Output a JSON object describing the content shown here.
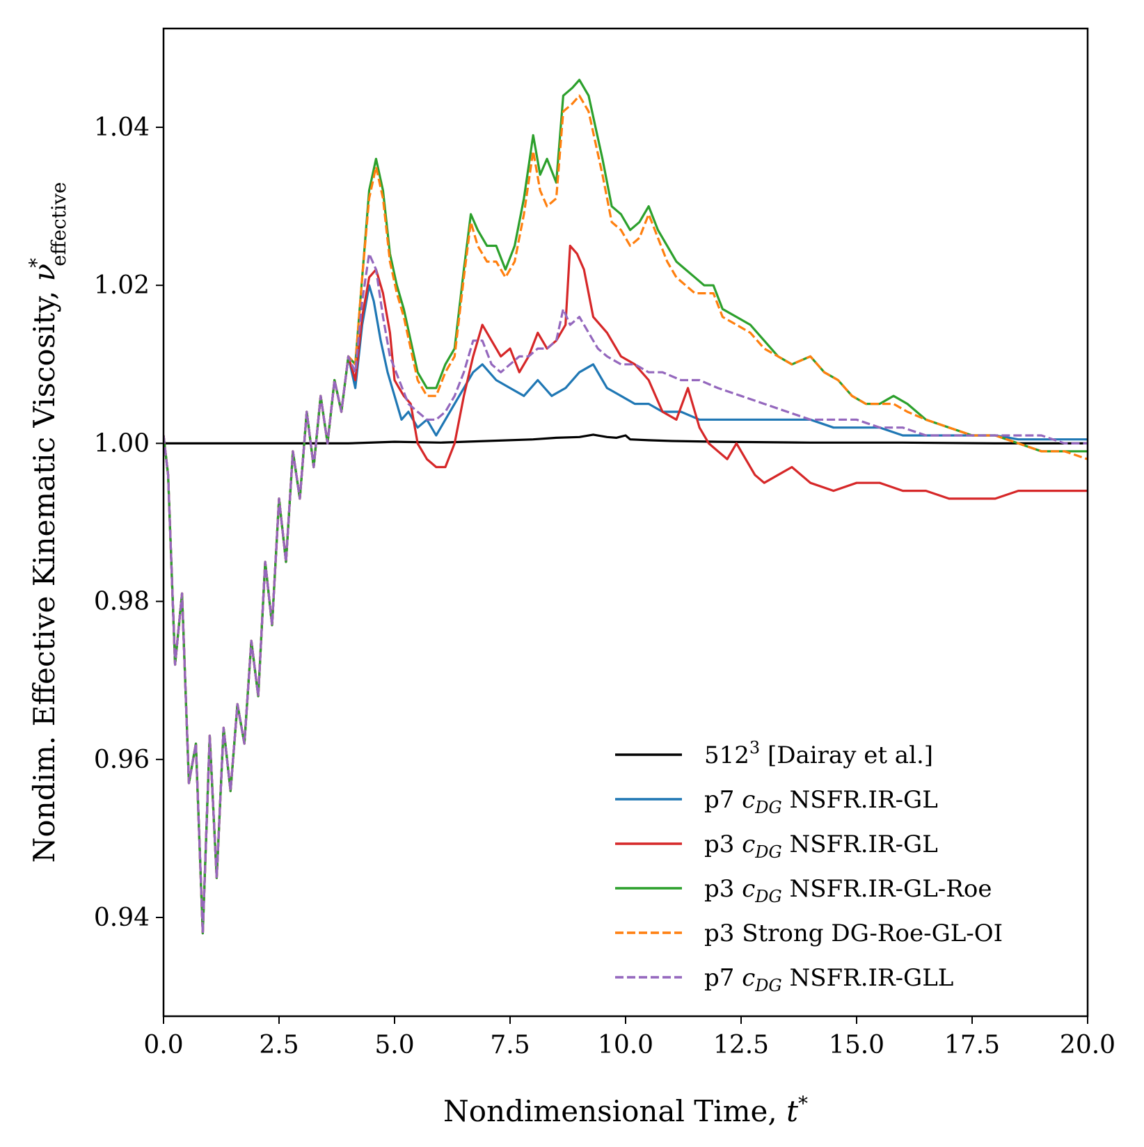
{
  "chart_data": {
    "type": "line",
    "title": "",
    "xlabel": "Nondimensional Time, ",
    "xlabel_symbol": "t",
    "xlabel_sup": "*",
    "ylabel": "Nondim. Effective Kinematic Viscosity, ",
    "ylabel_symbol": "ν",
    "ylabel_sup": "*",
    "ylabel_sub": "effective",
    "xlim": [
      0,
      20
    ],
    "ylim": [
      0.9275,
      1.0525
    ],
    "xticks": [
      0,
      2.5,
      5,
      7.5,
      10,
      12.5,
      15,
      17.5,
      20
    ],
    "xtick_labels": [
      "0.0",
      "2.5",
      "5.0",
      "7.5",
      "10.0",
      "12.5",
      "15.0",
      "17.5",
      "20.0"
    ],
    "yticks": [
      0.94,
      0.96,
      0.98,
      1.0,
      1.02,
      1.04
    ],
    "ytick_labels": [
      "0.94",
      "0.96",
      "0.98",
      "1.00",
      "1.02",
      "1.04"
    ],
    "grid": false,
    "legend_position": "lower-right",
    "series": [
      {
        "name": "512³ [Dairay et al.]",
        "label_main": "512",
        "label_sup": "3",
        "label_rest": " [Dairay et al.]",
        "color": "#000000",
        "dashed": false,
        "x": [
          0,
          1,
          2,
          3,
          4,
          5,
          6,
          7,
          8,
          8.5,
          9,
          9.3,
          9.6,
          9.8,
          10,
          10.1,
          10.5,
          11,
          12,
          14,
          16,
          18,
          20
        ],
        "y": [
          1.0,
          1.0,
          1.0,
          1.0,
          1.0,
          1.0002,
          1.0001,
          1.0003,
          1.0005,
          1.0007,
          1.0008,
          1.0011,
          1.0008,
          1.0007,
          1.001,
          1.0005,
          1.0004,
          1.0003,
          1.0002,
          1.0001,
          1.0001,
          1.0,
          1.0
        ]
      },
      {
        "name": "p7 cDG NSFR.IR-GL",
        "label_pre": "p7 ",
        "label_sym": "c",
        "label_sub": "DG",
        "label_post": " NSFR.IR-GL",
        "color": "#1f77b4",
        "dashed": false,
        "x": [
          0,
          0.1,
          0.25,
          0.4,
          0.55,
          0.7,
          0.85,
          1.0,
          1.15,
          1.3,
          1.45,
          1.6,
          1.75,
          1.9,
          2.05,
          2.2,
          2.35,
          2.5,
          2.65,
          2.8,
          2.95,
          3.1,
          3.25,
          3.4,
          3.55,
          3.7,
          3.85,
          4.0,
          4.15,
          4.3,
          4.45,
          4.55,
          4.7,
          4.85,
          5.0,
          5.15,
          5.3,
          5.5,
          5.7,
          5.9,
          6.1,
          6.3,
          6.5,
          6.7,
          6.9,
          7.2,
          7.5,
          7.8,
          8.1,
          8.4,
          8.7,
          9.0,
          9.3,
          9.6,
          9.9,
          10.2,
          10.5,
          10.8,
          11.2,
          11.6,
          12.0,
          12.5,
          13.0,
          13.5,
          14.0,
          14.5,
          15.0,
          15.5,
          16.0,
          16.5,
          17.0,
          17.5,
          18.0,
          18.5,
          19.0,
          19.5,
          20.0
        ],
        "y": [
          1.001,
          0.996,
          0.972,
          0.981,
          0.957,
          0.962,
          0.938,
          0.963,
          0.945,
          0.964,
          0.956,
          0.967,
          0.962,
          0.975,
          0.968,
          0.985,
          0.977,
          0.993,
          0.985,
          0.999,
          0.993,
          1.004,
          0.997,
          1.006,
          1.0,
          1.008,
          1.004,
          1.011,
          1.007,
          1.015,
          1.02,
          1.018,
          1.013,
          1.009,
          1.006,
          1.003,
          1.004,
          1.002,
          1.003,
          1.001,
          1.003,
          1.005,
          1.007,
          1.009,
          1.01,
          1.008,
          1.007,
          1.006,
          1.008,
          1.006,
          1.007,
          1.009,
          1.01,
          1.007,
          1.006,
          1.005,
          1.005,
          1.004,
          1.004,
          1.003,
          1.003,
          1.003,
          1.003,
          1.003,
          1.003,
          1.002,
          1.002,
          1.002,
          1.001,
          1.001,
          1.001,
          1.001,
          1.001,
          1.0005,
          1.0005,
          1.0005,
          1.0005
        ]
      },
      {
        "name": "p3 cDG NSFR.IR-GL",
        "label_pre": "p3 ",
        "label_sym": "c",
        "label_sub": "DG",
        "label_post": " NSFR.IR-GL",
        "color": "#d62728",
        "dashed": false,
        "x": [
          0,
          0.1,
          0.25,
          0.4,
          0.55,
          0.7,
          0.85,
          1.0,
          1.15,
          1.3,
          1.45,
          1.6,
          1.75,
          1.9,
          2.05,
          2.2,
          2.35,
          2.5,
          2.65,
          2.8,
          2.95,
          3.1,
          3.25,
          3.4,
          3.55,
          3.7,
          3.85,
          4.0,
          4.15,
          4.3,
          4.45,
          4.6,
          4.75,
          4.9,
          5.0,
          5.1,
          5.2,
          5.35,
          5.5,
          5.7,
          5.9,
          6.1,
          6.3,
          6.5,
          6.7,
          6.9,
          7.1,
          7.3,
          7.5,
          7.7,
          7.9,
          8.1,
          8.3,
          8.5,
          8.7,
          8.8,
          8.95,
          9.1,
          9.3,
          9.6,
          9.9,
          10.2,
          10.5,
          10.8,
          11.1,
          11.35,
          11.6,
          11.8,
          12.0,
          12.2,
          12.4,
          12.6,
          12.8,
          13.0,
          13.3,
          13.6,
          14.0,
          14.5,
          15.0,
          15.5,
          16.0,
          16.5,
          17.0,
          17.5,
          18.0,
          18.5,
          19.0,
          19.5,
          20.0
        ],
        "y": [
          1.001,
          0.996,
          0.972,
          0.981,
          0.957,
          0.962,
          0.938,
          0.963,
          0.945,
          0.964,
          0.956,
          0.967,
          0.962,
          0.975,
          0.968,
          0.985,
          0.977,
          0.993,
          0.985,
          0.999,
          0.993,
          1.004,
          0.997,
          1.006,
          1.0,
          1.008,
          1.004,
          1.011,
          1.008,
          1.016,
          1.021,
          1.022,
          1.019,
          1.014,
          1.008,
          1.007,
          1.006,
          1.005,
          1.0,
          0.998,
          0.997,
          0.997,
          1.0,
          1.006,
          1.011,
          1.015,
          1.013,
          1.011,
          1.012,
          1.009,
          1.011,
          1.014,
          1.012,
          1.013,
          1.015,
          1.025,
          1.024,
          1.022,
          1.016,
          1.014,
          1.011,
          1.01,
          1.008,
          1.004,
          1.003,
          1.007,
          1.002,
          1.0,
          0.999,
          0.998,
          1.0,
          0.998,
          0.996,
          0.995,
          0.996,
          0.997,
          0.995,
          0.994,
          0.995,
          0.995,
          0.994,
          0.994,
          0.993,
          0.993,
          0.993,
          0.994,
          0.994,
          0.994,
          0.994
        ]
      },
      {
        "name": "p3 cDG NSFR.IR-GL-Roe",
        "label_pre": "p3 ",
        "label_sym": "c",
        "label_sub": "DG",
        "label_post": " NSFR.IR-GL-Roe",
        "color": "#2ca02c",
        "dashed": false,
        "x": [
          0,
          0.1,
          0.25,
          0.4,
          0.55,
          0.7,
          0.85,
          1.0,
          1.15,
          1.3,
          1.45,
          1.6,
          1.75,
          1.9,
          2.05,
          2.2,
          2.35,
          2.5,
          2.65,
          2.8,
          2.95,
          3.1,
          3.25,
          3.4,
          3.55,
          3.7,
          3.85,
          4.0,
          4.15,
          4.3,
          4.45,
          4.6,
          4.75,
          4.9,
          5.05,
          5.2,
          5.35,
          5.5,
          5.7,
          5.9,
          6.1,
          6.3,
          6.5,
          6.65,
          6.8,
          7.0,
          7.2,
          7.4,
          7.6,
          7.8,
          8.0,
          8.15,
          8.3,
          8.5,
          8.65,
          8.85,
          9.0,
          9.2,
          9.35,
          9.5,
          9.7,
          9.9,
          10.1,
          10.3,
          10.5,
          10.7,
          10.9,
          11.1,
          11.3,
          11.5,
          11.7,
          11.9,
          12.1,
          12.4,
          12.7,
          13.0,
          13.3,
          13.6,
          14.0,
          14.3,
          14.6,
          14.9,
          15.2,
          15.5,
          15.8,
          16.1,
          16.5,
          17.0,
          17.5,
          18.0,
          18.5,
          19.0,
          19.5,
          20.0
        ],
        "y": [
          1.001,
          0.996,
          0.972,
          0.981,
          0.957,
          0.962,
          0.938,
          0.963,
          0.945,
          0.964,
          0.956,
          0.967,
          0.962,
          0.975,
          0.968,
          0.985,
          0.977,
          0.993,
          0.985,
          0.999,
          0.993,
          1.004,
          0.997,
          1.006,
          1.0,
          1.008,
          1.004,
          1.011,
          1.01,
          1.021,
          1.032,
          1.036,
          1.032,
          1.024,
          1.02,
          1.017,
          1.013,
          1.009,
          1.007,
          1.007,
          1.01,
          1.012,
          1.022,
          1.029,
          1.027,
          1.025,
          1.025,
          1.022,
          1.025,
          1.031,
          1.039,
          1.034,
          1.036,
          1.033,
          1.044,
          1.045,
          1.046,
          1.044,
          1.04,
          1.036,
          1.03,
          1.029,
          1.027,
          1.028,
          1.03,
          1.027,
          1.025,
          1.023,
          1.022,
          1.021,
          1.02,
          1.02,
          1.017,
          1.016,
          1.015,
          1.013,
          1.011,
          1.01,
          1.011,
          1.009,
          1.008,
          1.006,
          1.005,
          1.005,
          1.006,
          1.005,
          1.003,
          1.002,
          1.001,
          1.001,
          1.0,
          0.999,
          0.999,
          0.999
        ]
      },
      {
        "name": "p3 Strong DG-Roe-GL-OI",
        "label_pre": "p3 Strong DG-Roe-GL-OI",
        "color": "#ff7f0e",
        "dashed": true,
        "x": [
          0,
          0.1,
          0.25,
          0.4,
          0.55,
          0.7,
          0.85,
          1.0,
          1.15,
          1.3,
          1.45,
          1.6,
          1.75,
          1.9,
          2.05,
          2.2,
          2.35,
          2.5,
          2.65,
          2.8,
          2.95,
          3.1,
          3.25,
          3.4,
          3.55,
          3.7,
          3.85,
          4.0,
          4.15,
          4.3,
          4.45,
          4.6,
          4.75,
          4.9,
          5.05,
          5.2,
          5.35,
          5.5,
          5.7,
          5.9,
          6.1,
          6.3,
          6.5,
          6.65,
          6.8,
          7.0,
          7.2,
          7.4,
          7.6,
          7.8,
          8.0,
          8.15,
          8.3,
          8.5,
          8.65,
          8.85,
          9.0,
          9.2,
          9.35,
          9.5,
          9.7,
          9.9,
          10.1,
          10.3,
          10.5,
          10.7,
          10.9,
          11.1,
          11.3,
          11.5,
          11.7,
          11.9,
          12.1,
          12.4,
          12.7,
          13.0,
          13.3,
          13.6,
          14.0,
          14.3,
          14.6,
          14.9,
          15.2,
          15.5,
          15.8,
          16.1,
          16.5,
          17.0,
          17.5,
          18.0,
          18.5,
          19.0,
          19.5,
          20.0
        ],
        "y": [
          1.001,
          0.996,
          0.972,
          0.981,
          0.957,
          0.962,
          0.938,
          0.963,
          0.945,
          0.964,
          0.956,
          0.967,
          0.962,
          0.975,
          0.968,
          0.985,
          0.977,
          0.993,
          0.985,
          0.999,
          0.993,
          1.004,
          0.997,
          1.006,
          1.0,
          1.008,
          1.004,
          1.011,
          1.01,
          1.021,
          1.031,
          1.035,
          1.031,
          1.023,
          1.019,
          1.016,
          1.012,
          1.008,
          1.006,
          1.006,
          1.009,
          1.011,
          1.021,
          1.028,
          1.025,
          1.023,
          1.023,
          1.021,
          1.023,
          1.029,
          1.037,
          1.032,
          1.03,
          1.031,
          1.042,
          1.043,
          1.044,
          1.042,
          1.038,
          1.034,
          1.028,
          1.027,
          1.025,
          1.026,
          1.029,
          1.026,
          1.023,
          1.021,
          1.02,
          1.019,
          1.019,
          1.019,
          1.016,
          1.015,
          1.014,
          1.012,
          1.011,
          1.01,
          1.011,
          1.009,
          1.008,
          1.006,
          1.005,
          1.005,
          1.005,
          1.004,
          1.003,
          1.002,
          1.001,
          1.001,
          1.0,
          0.999,
          0.999,
          0.998
        ]
      },
      {
        "name": "p7 cDG NSFR.IR-GLL",
        "label_pre": "p7 ",
        "label_sym": "c",
        "label_sub": "DG",
        "label_post": " NSFR.IR-GLL",
        "color": "#9467bd",
        "dashed": true,
        "x": [
          0,
          0.1,
          0.25,
          0.4,
          0.55,
          0.7,
          0.85,
          1.0,
          1.15,
          1.3,
          1.45,
          1.6,
          1.75,
          1.9,
          2.05,
          2.2,
          2.35,
          2.5,
          2.65,
          2.8,
          2.95,
          3.1,
          3.25,
          3.4,
          3.55,
          3.7,
          3.85,
          4.0,
          4.15,
          4.3,
          4.45,
          4.6,
          4.75,
          4.9,
          5.1,
          5.3,
          5.5,
          5.7,
          5.9,
          6.1,
          6.3,
          6.5,
          6.7,
          6.9,
          7.1,
          7.3,
          7.5,
          7.7,
          7.9,
          8.1,
          8.3,
          8.5,
          8.65,
          8.8,
          9.0,
          9.2,
          9.4,
          9.6,
          9.9,
          10.2,
          10.5,
          10.8,
          11.2,
          11.6,
          12.0,
          12.5,
          13.0,
          13.5,
          14.0,
          14.5,
          15.0,
          15.5,
          16.0,
          16.5,
          17.0,
          17.5,
          18.0,
          18.5,
          19.0,
          19.5,
          20.0
        ],
        "y": [
          1.001,
          0.996,
          0.972,
          0.981,
          0.957,
          0.962,
          0.938,
          0.963,
          0.945,
          0.964,
          0.956,
          0.967,
          0.962,
          0.975,
          0.968,
          0.985,
          0.977,
          0.993,
          0.985,
          0.999,
          0.993,
          1.004,
          0.997,
          1.006,
          1.0,
          1.008,
          1.004,
          1.011,
          1.009,
          1.018,
          1.024,
          1.022,
          1.016,
          1.011,
          1.008,
          1.005,
          1.004,
          1.003,
          1.003,
          1.004,
          1.006,
          1.009,
          1.013,
          1.013,
          1.01,
          1.009,
          1.01,
          1.011,
          1.011,
          1.012,
          1.012,
          1.013,
          1.017,
          1.015,
          1.016,
          1.014,
          1.012,
          1.011,
          1.01,
          1.01,
          1.009,
          1.009,
          1.008,
          1.008,
          1.007,
          1.006,
          1.005,
          1.004,
          1.003,
          1.003,
          1.003,
          1.002,
          1.002,
          1.001,
          1.001,
          1.001,
          1.001,
          1.001,
          1.001,
          1.0,
          1.0
        ]
      }
    ]
  }
}
